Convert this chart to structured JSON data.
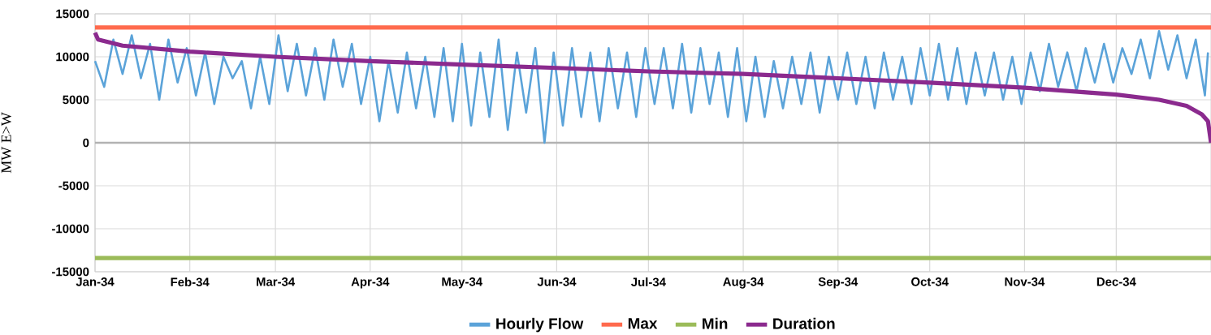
{
  "chart_data": {
    "type": "line",
    "ylabel": "MW E>W",
    "xlim": [
      "2034-01-01",
      "2035-01-01"
    ],
    "xticks": [
      {
        "value": "2034-01-01",
        "label": "Jan-34"
      },
      {
        "value": "2034-02-01",
        "label": "Feb-34"
      },
      {
        "value": "2034-03-01",
        "label": "Mar-34"
      },
      {
        "value": "2034-04-01",
        "label": "Apr-34"
      },
      {
        "value": "2034-05-01",
        "label": "May-34"
      },
      {
        "value": "2034-06-01",
        "label": "Jun-34"
      },
      {
        "value": "2034-07-01",
        "label": "Jul-34"
      },
      {
        "value": "2034-08-01",
        "label": "Aug-34"
      },
      {
        "value": "2034-09-01",
        "label": "Sep-34"
      },
      {
        "value": "2034-10-01",
        "label": "Oct-34"
      },
      {
        "value": "2034-11-01",
        "label": "Nov-34"
      },
      {
        "value": "2034-12-01",
        "label": "Dec-34"
      }
    ],
    "ylim": [
      -15000,
      15000
    ],
    "yticks": [
      -15000,
      -10000,
      -5000,
      0,
      5000,
      10000,
      15000
    ],
    "grid": true,
    "legend": "bottom",
    "marker": "none",
    "line_style": "solid",
    "series": [
      {
        "name": "Hourly Flow",
        "color": "#5ba3d9",
        "x": [
          "2034-01-01",
          "2034-01-04",
          "2034-01-07",
          "2034-01-10",
          "2034-01-13",
          "2034-01-16",
          "2034-01-19",
          "2034-01-22",
          "2034-01-25",
          "2034-01-28",
          "2034-01-31",
          "2034-02-03",
          "2034-02-06",
          "2034-02-09",
          "2034-02-12",
          "2034-02-15",
          "2034-02-18",
          "2034-02-21",
          "2034-02-24",
          "2034-02-27",
          "2034-03-02",
          "2034-03-05",
          "2034-03-08",
          "2034-03-11",
          "2034-03-14",
          "2034-03-17",
          "2034-03-20",
          "2034-03-23",
          "2034-03-26",
          "2034-03-29",
          "2034-04-01",
          "2034-04-04",
          "2034-04-07",
          "2034-04-10",
          "2034-04-13",
          "2034-04-16",
          "2034-04-19",
          "2034-04-22",
          "2034-04-25",
          "2034-04-28",
          "2034-05-01",
          "2034-05-04",
          "2034-05-07",
          "2034-05-10",
          "2034-05-13",
          "2034-05-16",
          "2034-05-19",
          "2034-05-22",
          "2034-05-25",
          "2034-05-28",
          "2034-05-31",
          "2034-06-03",
          "2034-06-06",
          "2034-06-09",
          "2034-06-12",
          "2034-06-15",
          "2034-06-18",
          "2034-06-21",
          "2034-06-24",
          "2034-06-27",
          "2034-06-30",
          "2034-07-03",
          "2034-07-06",
          "2034-07-09",
          "2034-07-12",
          "2034-07-15",
          "2034-07-18",
          "2034-07-21",
          "2034-07-24",
          "2034-07-27",
          "2034-07-30",
          "2034-08-02",
          "2034-08-05",
          "2034-08-08",
          "2034-08-11",
          "2034-08-14",
          "2034-08-17",
          "2034-08-20",
          "2034-08-23",
          "2034-08-26",
          "2034-08-29",
          "2034-09-01",
          "2034-09-04",
          "2034-09-07",
          "2034-09-10",
          "2034-09-13",
          "2034-09-16",
          "2034-09-19",
          "2034-09-22",
          "2034-09-25",
          "2034-09-28",
          "2034-10-01",
          "2034-10-04",
          "2034-10-07",
          "2034-10-10",
          "2034-10-13",
          "2034-10-16",
          "2034-10-19",
          "2034-10-22",
          "2034-10-25",
          "2034-10-28",
          "2034-10-31",
          "2034-11-03",
          "2034-11-06",
          "2034-11-09",
          "2034-11-12",
          "2034-11-15",
          "2034-11-18",
          "2034-11-21",
          "2034-11-24",
          "2034-11-27",
          "2034-11-30",
          "2034-12-03",
          "2034-12-06",
          "2034-12-09",
          "2034-12-12",
          "2034-12-15",
          "2034-12-18",
          "2034-12-21",
          "2034-12-24",
          "2034-12-27",
          "2034-12-30",
          "2034-12-31"
        ],
        "values": [
          9500,
          6500,
          12000,
          8000,
          12500,
          7500,
          11500,
          5000,
          12000,
          7000,
          11000,
          5500,
          10500,
          4500,
          10000,
          7500,
          9500,
          4000,
          10000,
          4500,
          12500,
          6000,
          11500,
          5500,
          11000,
          5000,
          12000,
          6500,
          11500,
          4500,
          10000,
          2500,
          9500,
          3500,
          10500,
          4000,
          10000,
          3000,
          11000,
          2500,
          11500,
          2000,
          10500,
          3000,
          12000,
          1500,
          10500,
          3500,
          11000,
          0,
          10500,
          2000,
          11000,
          3000,
          10500,
          2500,
          11000,
          4000,
          10500,
          3000,
          11000,
          4500,
          11000,
          4000,
          11500,
          3500,
          11000,
          4500,
          10500,
          3000,
          11000,
          2500,
          10000,
          3000,
          9500,
          4000,
          10000,
          4500,
          10500,
          3500,
          10000,
          5000,
          10500,
          4500,
          10000,
          4000,
          10500,
          5000,
          10000,
          4500,
          11000,
          5500,
          11500,
          5000,
          11000,
          4500,
          10500,
          5500,
          10500,
          5000,
          10000,
          4500,
          10500,
          6000,
          11500,
          6500,
          10500,
          6000,
          11000,
          7000,
          11500,
          7000,
          11000,
          8000,
          12000,
          7500,
          13000,
          8500,
          12500,
          7500,
          12000,
          5500,
          10500
        ]
      },
      {
        "name": "Max",
        "color": "#ff6a4d",
        "x": [
          "2034-01-01",
          "2035-01-01"
        ],
        "values": [
          13400,
          13400
        ]
      },
      {
        "name": "Min",
        "color": "#9bbb59",
        "x": [
          "2034-01-01",
          "2035-01-01"
        ],
        "values": [
          -13400,
          -13400
        ]
      },
      {
        "name": "Duration",
        "color": "#8b2a8e",
        "x": [
          "2034-01-01",
          "2034-01-02",
          "2034-01-10",
          "2034-02-01",
          "2034-03-01",
          "2034-04-01",
          "2034-05-01",
          "2034-06-01",
          "2034-07-01",
          "2034-08-01",
          "2034-09-01",
          "2034-10-01",
          "2034-11-01",
          "2034-12-01",
          "2034-12-15",
          "2034-12-24",
          "2034-12-29",
          "2034-12-31",
          "2035-01-01"
        ],
        "values": [
          12800,
          12000,
          11300,
          10600,
          10000,
          9500,
          9100,
          8700,
          8300,
          8000,
          7500,
          7000,
          6400,
          5600,
          5000,
          4300,
          3300,
          2500,
          0
        ]
      }
    ]
  }
}
